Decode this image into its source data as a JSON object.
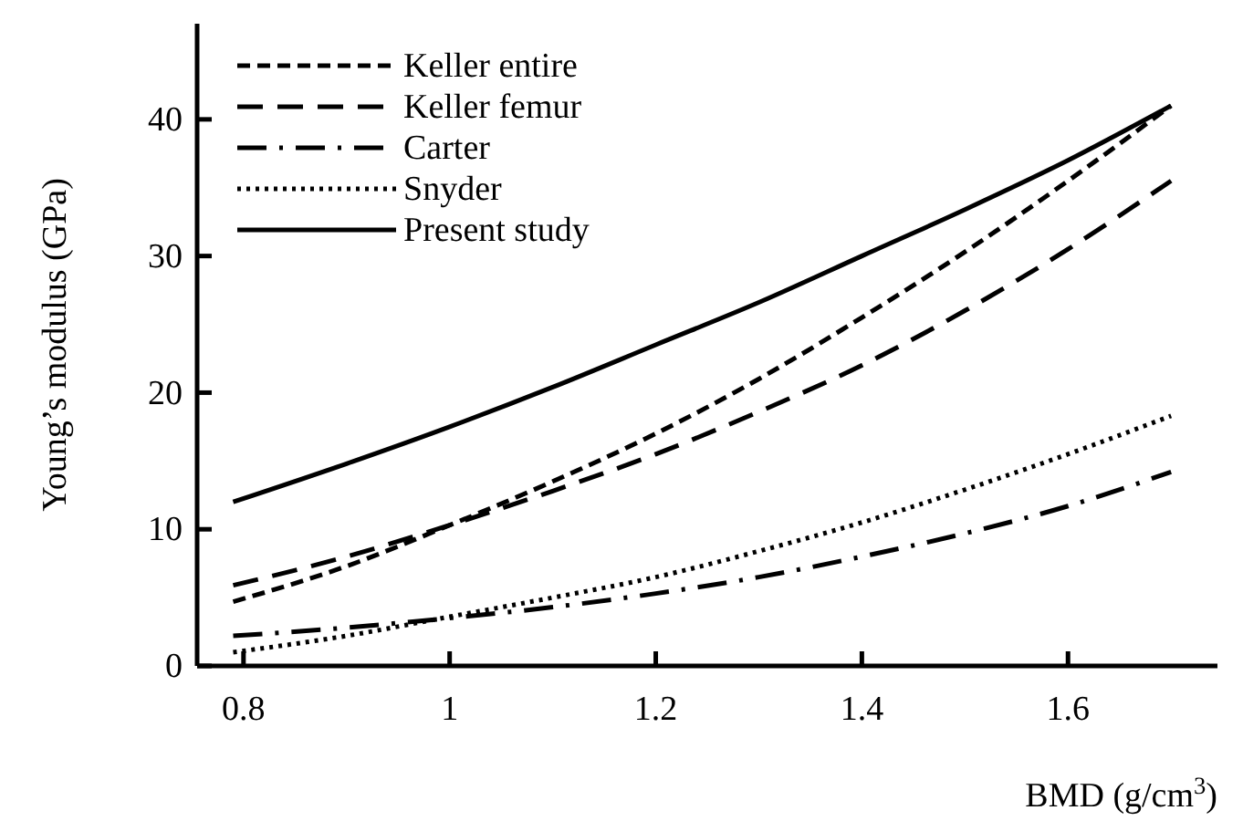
{
  "chart_data": {
    "type": "line",
    "xlabel": "BMD (g/cm$^{3}$)",
    "ylabel": "Young’s modulus (GPa)",
    "x": [
      0.79,
      0.9,
      1,
      1.1,
      1.2,
      1.3,
      1.4,
      1.5,
      1.6,
      1.7
    ],
    "xlim": [
      0.755,
      1.745
    ],
    "xticks": [
      {
        "value": 0.8,
        "label": "0.8"
      },
      1,
      {
        "value": 1.2,
        "label": "1.2"
      },
      {
        "value": 1.4,
        "label": "1.4"
      },
      {
        "value": 1.6,
        "label": "1.6"
      }
    ],
    "ylim": [
      0,
      47
    ],
    "yticks": [
      0,
      10,
      20,
      30,
      40
    ],
    "legend": "top left",
    "grid": false,
    "marker": "none",
    "series": [
      {
        "name": "Keller entire",
        "color": "#000000",
        "line_style": "dashed",
        "values": [
          4.7,
          7.3,
          10.3,
          13.5,
          17,
          21,
          25.5,
          30.3,
          35.5,
          41
        ]
      },
      {
        "name": "Keller femur",
        "color": "#000000",
        "line_style": "longdash",
        "values": [
          5.9,
          8,
          10.3,
          12.8,
          15.5,
          18.6,
          22,
          26,
          30.5,
          35.5
        ]
      },
      {
        "name": "Carter",
        "color": "#000000",
        "line_style": "dashdot",
        "values": [
          2.2,
          2.8,
          3.5,
          4.3,
          5.3,
          6.5,
          8,
          9.7,
          11.7,
          14.2
        ]
      },
      {
        "name": "Snyder",
        "color": "#000000",
        "line_style": "dotted",
        "values": [
          1,
          2.2,
          3.6,
          5,
          6.5,
          8.4,
          10.5,
          12.9,
          15.5,
          18.3
        ]
      },
      {
        "name": "Present study",
        "color": "#000000",
        "line_style": "solid",
        "values": [
          12,
          14.8,
          17.5,
          20.4,
          23.5,
          26.6,
          30,
          33.4,
          37,
          41
        ]
      }
    ]
  }
}
